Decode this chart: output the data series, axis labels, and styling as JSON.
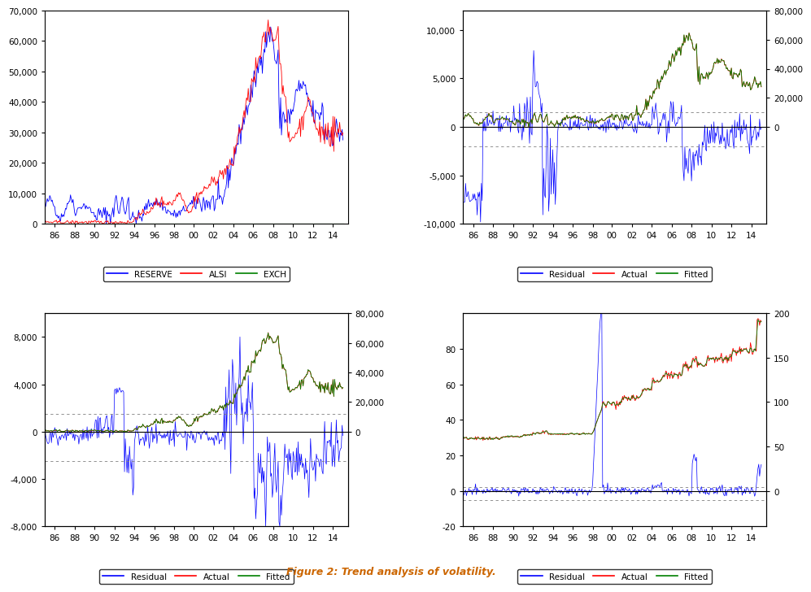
{
  "title": "Figure 2: Trend analysis of volatility.",
  "title_color": "#cc6600",
  "panel1": {
    "left_ylim": [
      0,
      70000
    ],
    "left_yticks": [
      0,
      10000,
      20000,
      30000,
      40000,
      50000,
      60000,
      70000
    ],
    "legend": [
      "RESERVE",
      "ALSI",
      "EXCH"
    ],
    "colors": [
      "blue",
      "red",
      "#008000"
    ]
  },
  "panel2": {
    "left_ylim": [
      -10000,
      12000
    ],
    "right_ylim": [
      0,
      80000
    ],
    "left_yticks": [
      -10000,
      -5000,
      0,
      5000,
      10000
    ],
    "right_yticks": [
      0,
      20000,
      40000,
      60000,
      80000
    ],
    "legend": [
      "Residual",
      "Actual",
      "Fitted"
    ],
    "colors": [
      "blue",
      "red",
      "#008000"
    ],
    "hlines": [
      1500,
      -2000
    ]
  },
  "panel3": {
    "left_ylim": [
      -8000,
      10000
    ],
    "right_ylim": [
      0,
      80000
    ],
    "left_yticks": [
      -8000,
      -4000,
      0,
      4000,
      8000
    ],
    "right_yticks": [
      0,
      20000,
      40000,
      60000,
      80000
    ],
    "legend": [
      "Residual",
      "Actual",
      "Fitted"
    ],
    "colors": [
      "blue",
      "red",
      "#008000"
    ],
    "hlines": [
      1500,
      -2500
    ]
  },
  "panel4": {
    "left_ylim": [
      -20,
      100
    ],
    "right_ylim": [
      0,
      200
    ],
    "left_yticks": [
      -20,
      0,
      20,
      40,
      60,
      80
    ],
    "right_yticks": [
      0,
      50,
      100,
      150,
      200
    ],
    "legend": [
      "Residual",
      "Actual",
      "Fitted"
    ],
    "colors": [
      "blue",
      "red",
      "#008000"
    ],
    "hlines": [
      2,
      -5
    ]
  }
}
